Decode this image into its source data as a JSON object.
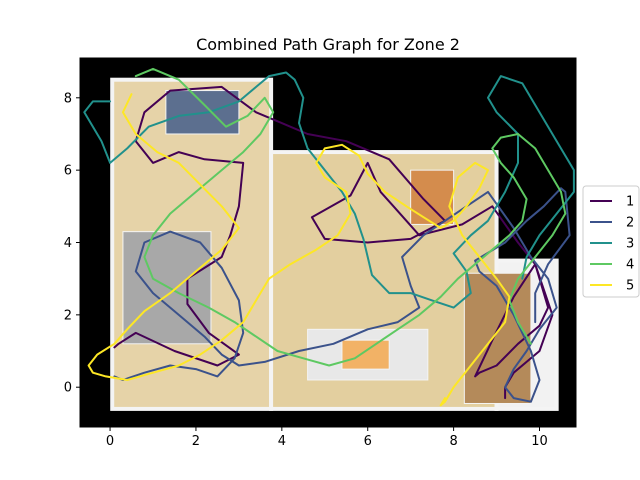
{
  "chart_data": {
    "type": "line",
    "title": "Combined Path Graph for Zone 2",
    "xlabel": "",
    "ylabel": "",
    "xlim": [
      -0.7,
      10.85
    ],
    "ylim": [
      -1.1,
      9.1
    ],
    "xticks": [
      0,
      2,
      4,
      6,
      8,
      10
    ],
    "yticks": [
      0,
      2,
      4,
      6,
      8
    ],
    "xtick_labels": [
      "0",
      "2",
      "4",
      "6",
      "8",
      "10"
    ],
    "ytick_labels": [
      "0",
      "2",
      "4",
      "6",
      "8"
    ],
    "grid": false,
    "legend_position": "center-right",
    "background": {
      "kind": "floor-plan-image",
      "outer_color": "#000000",
      "rooms": [
        {
          "x0": 0.05,
          "x1": 3.75,
          "y0": -0.6,
          "y1": 8.5,
          "color": "#e6d3a8"
        },
        {
          "x0": 3.75,
          "x1": 9.0,
          "y0": -0.6,
          "y1": 6.5,
          "color": "#e3cf9f"
        },
        {
          "x0": 9.0,
          "x1": 10.4,
          "y0": -0.6,
          "y1": 3.5,
          "color": "#f2f2f2"
        },
        {
          "x0": 8.25,
          "x1": 9.8,
          "y0": -0.45,
          "y1": 3.15,
          "color": "#b48a5a"
        },
        {
          "x0": 0.3,
          "x1": 2.35,
          "y0": 1.2,
          "y1": 4.3,
          "color": "#a8a8a8"
        },
        {
          "x0": 1.3,
          "x1": 3.0,
          "y0": 7.0,
          "y1": 8.2,
          "color": "#5c6f8f"
        },
        {
          "x0": 7.0,
          "x1": 8.0,
          "y0": 4.5,
          "y1": 6.0,
          "color": "#d48c4d"
        },
        {
          "x0": 4.6,
          "x1": 7.4,
          "y0": 0.2,
          "y1": 1.6,
          "color": "#e8e8e8"
        },
        {
          "x0": 5.4,
          "x1": 6.5,
          "y0": 0.5,
          "y1": 1.3,
          "color": "#f2b266"
        }
      ]
    },
    "series": [
      {
        "name": "1",
        "color": "#440154",
        "x": [
          0.1,
          0.2,
          0.6,
          1.5,
          2.5,
          3.0,
          2.3,
          1.8,
          1.8,
          2.6,
          2.8,
          3.0,
          3.1,
          2.2,
          1.6,
          1.0,
          0.6,
          0.8,
          1.4,
          2.6,
          3.4,
          4.0,
          4.6,
          5.5,
          6.5,
          7.3,
          7.8,
          7.0,
          6.0,
          5.0,
          4.7,
          5.6,
          6.0,
          6.3,
          6.6,
          7.2,
          8.2,
          8.9,
          9.5,
          9.9,
          10.2,
          10.0,
          9.5,
          9.0,
          8.6,
          8.5,
          8.9,
          9.4,
          9.9,
          10.3,
          10.0,
          9.4,
          9.2,
          9.2
        ],
        "y": [
          1.1,
          1.2,
          1.5,
          1.0,
          0.6,
          0.9,
          1.5,
          2.3,
          3.0,
          3.6,
          4.2,
          5.0,
          6.2,
          6.3,
          6.5,
          6.2,
          6.8,
          7.6,
          8.2,
          8.3,
          7.6,
          7.3,
          7.0,
          6.8,
          6.3,
          5.2,
          4.6,
          4.1,
          4.0,
          4.1,
          4.7,
          5.3,
          6.2,
          5.4,
          5.0,
          4.2,
          4.5,
          5.0,
          4.0,
          3.4,
          2.2,
          1.7,
          1.2,
          0.6,
          0.4,
          0.3,
          1.3,
          2.5,
          3.4,
          2.0,
          1.0,
          0.4,
          0.0,
          -0.3
        ]
      },
      {
        "name": "2",
        "color": "#3b528b",
        "x": [
          0.1,
          0.3,
          0.8,
          1.4,
          2.0,
          2.5,
          2.9,
          3.1,
          3.0,
          2.6,
          2.1,
          1.4,
          0.8,
          0.6,
          1.0,
          1.6,
          2.2,
          2.6,
          3.0,
          3.6,
          4.4,
          5.2,
          6.0,
          6.7,
          7.2,
          7.0,
          6.8,
          7.3,
          7.8,
          8.3,
          8.8,
          9.4,
          9.8,
          10.2,
          10.4,
          10.0,
          9.7,
          9.4,
          9.2,
          9.4,
          9.8,
          10.0,
          9.8,
          9.4,
          9.0,
          8.6,
          8.5,
          9.2,
          9.7,
          10.1,
          10.5,
          10.6,
          10.7,
          10.2,
          9.9,
          9.9
        ],
        "y": [
          0.3,
          0.2,
          0.4,
          0.6,
          0.5,
          0.3,
          0.8,
          1.5,
          2.4,
          3.3,
          4.0,
          4.3,
          4.0,
          3.2,
          2.6,
          2.0,
          1.4,
          0.9,
          0.6,
          0.7,
          1.0,
          1.2,
          1.6,
          1.8,
          2.2,
          2.8,
          3.6,
          4.2,
          4.6,
          5.0,
          5.4,
          4.4,
          3.6,
          3.0,
          2.2,
          1.6,
          1.0,
          0.5,
          0.0,
          -0.3,
          -0.4,
          0.2,
          1.0,
          2.0,
          2.8,
          3.2,
          3.5,
          4.0,
          4.6,
          5.0,
          5.5,
          5.4,
          4.2,
          3.4,
          2.6,
          1.8
        ]
      },
      {
        "name": "3",
        "color": "#21918c",
        "x": [
          0.0,
          -0.4,
          -0.6,
          -0.2,
          0.0,
          0.4,
          0.9,
          1.6,
          2.3,
          3.0,
          3.4,
          3.7,
          4.1,
          4.3,
          4.5,
          4.4,
          4.6,
          5.0,
          5.4,
          5.7,
          5.9,
          6.0,
          6.1,
          6.5,
          7.0,
          7.5,
          8.0,
          8.4,
          8.3,
          8.0,
          8.4,
          8.8,
          9.2,
          9.5,
          9.5,
          9.0,
          8.8,
          9.1,
          9.6,
          10.0,
          10.4,
          10.8,
          10.8,
          10.4,
          10.0,
          9.7,
          9.6
        ],
        "y": [
          7.9,
          7.9,
          7.6,
          6.8,
          6.2,
          6.6,
          7.2,
          7.5,
          7.6,
          7.9,
          8.3,
          8.6,
          8.7,
          8.5,
          8.0,
          7.3,
          6.6,
          6.0,
          5.4,
          4.8,
          4.1,
          3.6,
          3.1,
          2.6,
          2.6,
          2.4,
          2.2,
          2.6,
          3.2,
          3.7,
          4.2,
          4.6,
          5.4,
          6.2,
          7.0,
          7.6,
          8.0,
          8.6,
          8.4,
          7.6,
          6.8,
          6.0,
          5.4,
          4.8,
          4.2,
          3.6,
          3.0
        ]
      },
      {
        "name": "4",
        "color": "#5ec962",
        "x": [
          0.6,
          1.0,
          1.6,
          2.2,
          2.7,
          3.2,
          3.6,
          3.8,
          3.5,
          3.1,
          2.6,
          2.0,
          1.4,
          1.0,
          0.8,
          1.0,
          1.6,
          2.3,
          2.9,
          3.4,
          3.9,
          4.5,
          5.1,
          5.7,
          6.2,
          6.7,
          7.2,
          7.7,
          8.1,
          8.5,
          8.9,
          9.3,
          9.6,
          9.7,
          9.4,
          9.1,
          8.9,
          9.1,
          9.5,
          9.9,
          10.2,
          10.5,
          10.6,
          10.3,
          9.9,
          9.5,
          9.3,
          9.5,
          9.8
        ],
        "y": [
          8.6,
          8.8,
          8.5,
          7.8,
          7.2,
          7.5,
          8.0,
          7.6,
          7.0,
          6.5,
          6.0,
          5.4,
          4.8,
          4.2,
          3.6,
          3.0,
          2.6,
          2.2,
          1.8,
          1.4,
          1.0,
          0.8,
          0.6,
          0.8,
          1.2,
          1.6,
          2.0,
          2.5,
          3.0,
          3.4,
          3.8,
          4.2,
          4.6,
          5.2,
          5.8,
          6.2,
          6.6,
          6.9,
          7.0,
          6.6,
          6.0,
          5.4,
          4.8,
          4.2,
          3.6,
          3.0,
          2.4,
          1.8,
          1.2
        ]
      },
      {
        "name": "5",
        "color": "#fde725",
        "x": [
          0.5,
          0.3,
          0.6,
          1.1,
          1.6,
          2.1,
          2.6,
          3.0,
          2.6,
          2.0,
          1.4,
          0.8,
          0.4,
          0.1,
          -0.3,
          -0.5,
          -0.4,
          -0.1,
          0.4,
          1.0,
          1.6,
          2.1,
          2.6,
          3.1,
          3.4,
          3.7,
          4.2,
          4.8,
          5.3,
          5.6,
          5.5,
          5.0,
          4.8,
          5.0,
          5.4,
          5.8,
          6.0,
          6.4,
          6.9,
          7.3,
          7.7,
          8.0,
          8.3,
          8.6,
          8.8,
          8.5,
          8.1,
          7.9,
          8.2,
          8.6,
          9.0,
          9.3,
          9.2,
          8.8,
          8.4,
          8.0,
          7.8,
          7.7,
          7.8
        ],
        "y": [
          8.1,
          7.6,
          7.0,
          6.5,
          6.2,
          5.6,
          5.0,
          4.4,
          3.8,
          3.2,
          2.6,
          2.1,
          1.6,
          1.2,
          0.9,
          0.6,
          0.4,
          0.3,
          0.2,
          0.4,
          0.6,
          0.9,
          1.3,
          1.8,
          2.4,
          3.0,
          3.4,
          3.8,
          4.2,
          4.8,
          5.4,
          5.8,
          6.2,
          6.6,
          6.7,
          6.4,
          5.9,
          5.4,
          5.0,
          4.7,
          4.4,
          4.6,
          5.0,
          5.5,
          6.0,
          6.2,
          5.8,
          5.0,
          4.2,
          3.6,
          3.0,
          2.5,
          1.8,
          1.2,
          0.6,
          0.0,
          -0.4,
          -0.5,
          -0.3
        ]
      }
    ]
  }
}
